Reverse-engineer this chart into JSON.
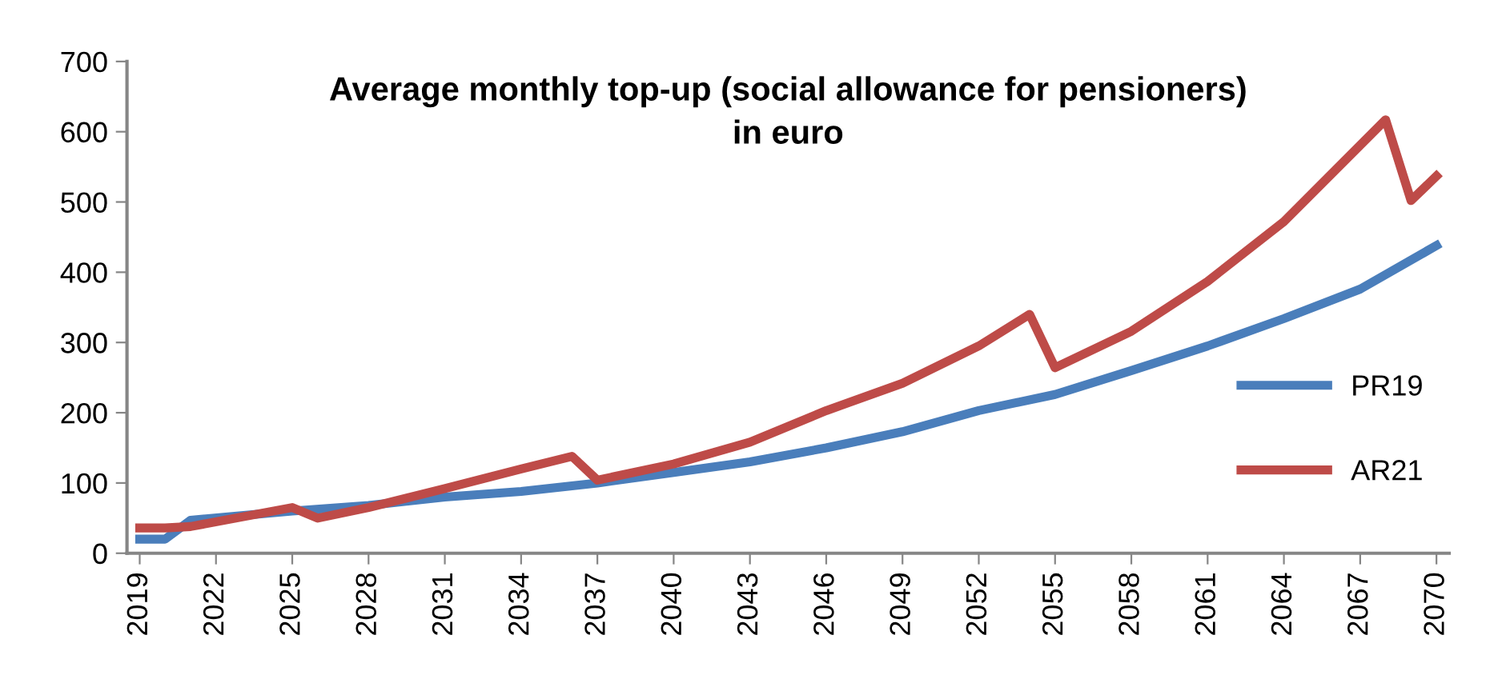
{
  "chart_data": {
    "type": "line",
    "title": "Average monthly top-up (social allowance for pensioners)\nin euro",
    "series": [
      {
        "name": "PR19",
        "color": "#4a7ebb",
        "x": [
          2019,
          2020,
          2021,
          2025,
          2028,
          2031,
          2034,
          2037,
          2040,
          2043,
          2046,
          2049,
          2052,
          2055,
          2058,
          2061,
          2064,
          2067,
          2070
        ],
        "values": [
          20,
          20,
          47,
          60,
          68,
          80,
          88,
          100,
          115,
          130,
          150,
          173,
          203,
          226,
          260,
          295,
          334,
          376,
          438
        ]
      },
      {
        "name": "AR21",
        "color": "#be4b48",
        "x": [
          2019,
          2020,
          2021,
          2025,
          2026,
          2028,
          2031,
          2034,
          2036,
          2037,
          2040,
          2043,
          2046,
          2049,
          2052,
          2054,
          2055,
          2058,
          2061,
          2064,
          2068,
          2069,
          2070
        ],
        "values": [
          36,
          36,
          38,
          65,
          50,
          65,
          92,
          120,
          138,
          104,
          127,
          158,
          203,
          242,
          295,
          340,
          264,
          316,
          387,
          472,
          617,
          502,
          537
        ]
      }
    ],
    "xlim": [
      2018.5,
      2070.5
    ],
    "xticks": [
      2019,
      2022,
      2025,
      2028,
      2031,
      2034,
      2037,
      2040,
      2043,
      2046,
      2049,
      2052,
      2055,
      2058,
      2061,
      2064,
      2067,
      2070
    ],
    "ylim": [
      0,
      700
    ],
    "yticks": [
      0,
      100,
      200,
      300,
      400,
      500,
      600,
      700
    ],
    "grid": false,
    "legend": "right",
    "marker": "none",
    "line_style": "solid"
  }
}
